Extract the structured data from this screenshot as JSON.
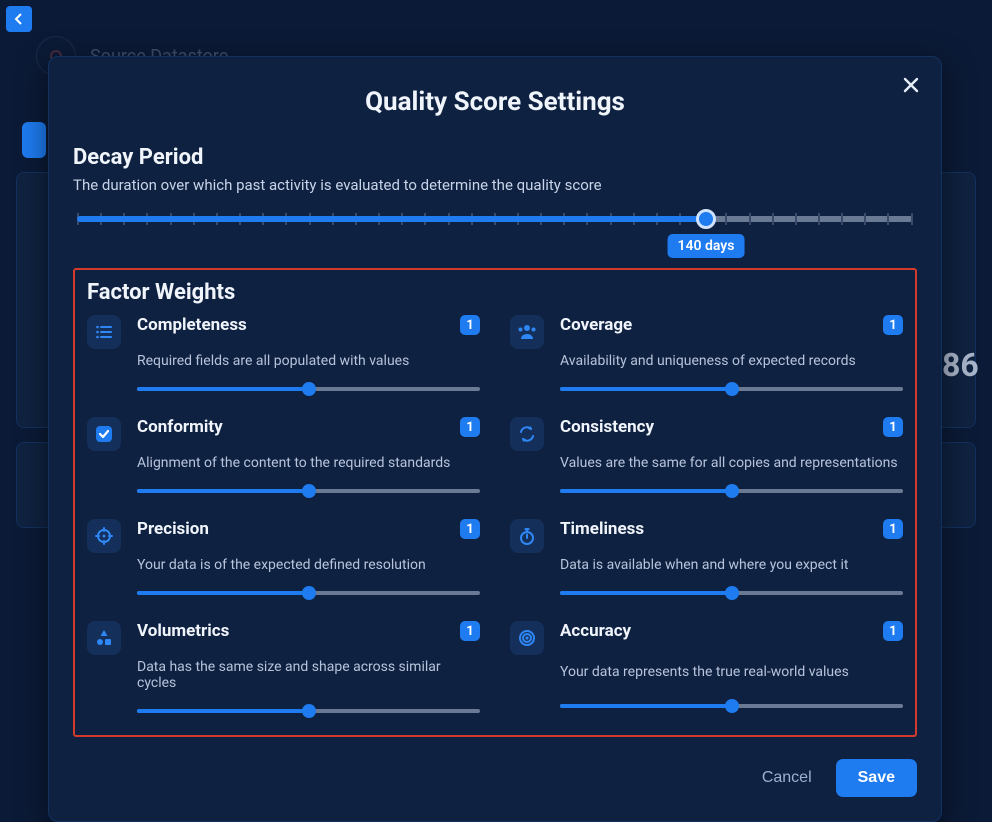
{
  "background": {
    "source_label": "Source Datastore",
    "big_number": "86"
  },
  "modal": {
    "title": "Quality Score Settings",
    "decay": {
      "title": "Decay Period",
      "subtitle": "The duration over which past activity is evaluated to determine the quality score",
      "value_label": "140 days",
      "fill_percent": 75,
      "tick_count": 37
    },
    "factor_weights": {
      "title": "Factor Weights",
      "highlight_border_color": "#d23b2b",
      "items": [
        {
          "key": "completeness",
          "name": "Completeness",
          "desc": "Required fields are all populated with values",
          "value": "1",
          "fill_percent": 50,
          "icon": "list"
        },
        {
          "key": "coverage",
          "name": "Coverage",
          "desc": "Availability and uniqueness of expected records",
          "value": "1",
          "fill_percent": 50,
          "icon": "users"
        },
        {
          "key": "conformity",
          "name": "Conformity",
          "desc": "Alignment of the content to the required standards",
          "value": "1",
          "fill_percent": 50,
          "icon": "checkbox"
        },
        {
          "key": "consistency",
          "name": "Consistency",
          "desc": "Values are the same for all copies and representations",
          "value": "1",
          "fill_percent": 50,
          "icon": "sync"
        },
        {
          "key": "precision",
          "name": "Precision",
          "desc": "Your data is of the expected defined resolution",
          "value": "1",
          "fill_percent": 50,
          "icon": "crosshair"
        },
        {
          "key": "timeliness",
          "name": "Timeliness",
          "desc": "Data is available when and where you expect it",
          "value": "1",
          "fill_percent": 50,
          "icon": "stopwatch"
        },
        {
          "key": "volumetrics",
          "name": "Volumetrics",
          "desc": "Data has the same size and shape across similar cycles",
          "value": "1",
          "fill_percent": 50,
          "icon": "shapes"
        },
        {
          "key": "accuracy",
          "name": "Accuracy",
          "desc": "Your data represents the true real-world values",
          "value": "1",
          "fill_percent": 50,
          "icon": "target"
        }
      ]
    },
    "actions": {
      "cancel": "Cancel",
      "save": "Save"
    }
  },
  "colors": {
    "accent": "#1e7bf0",
    "modal_bg": "#0f2140",
    "page_bg": "#0b1a36",
    "text": "#e6edf7",
    "muted": "#b7c4dc",
    "track": "#6a7a94"
  }
}
